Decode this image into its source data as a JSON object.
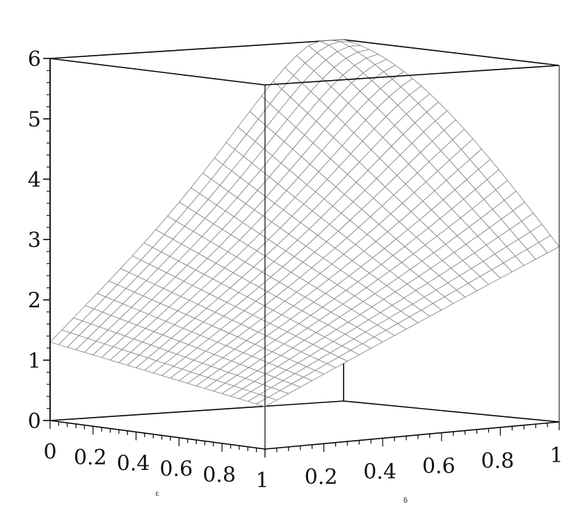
{
  "chart_data": {
    "type": "surface3d",
    "xlabel": "ε",
    "ylabel": "δ",
    "zlabel": "",
    "xlim": [
      0,
      1
    ],
    "ylim": [
      0,
      1
    ],
    "zlim": [
      0,
      6
    ],
    "x_ticks": [
      "0",
      "0.2",
      "0.4",
      "0.6",
      "0.8",
      "1"
    ],
    "y_ticks": [
      "0.2",
      "0.4",
      "0.6",
      "0.8",
      "1"
    ],
    "z_ticks": [
      "0",
      "1",
      "2",
      "3",
      "4",
      "5",
      "6"
    ],
    "grid_lines": 25,
    "corner_values": {
      "eps0_delta0": 1.3,
      "eps1_delta0": 0.7,
      "eps1_delta1": 2.95,
      "eps0_delta1": 6.0
    },
    "colors": {
      "mesh": "#8a8a8a",
      "surface": "#ffffff",
      "box": "#000000"
    }
  }
}
